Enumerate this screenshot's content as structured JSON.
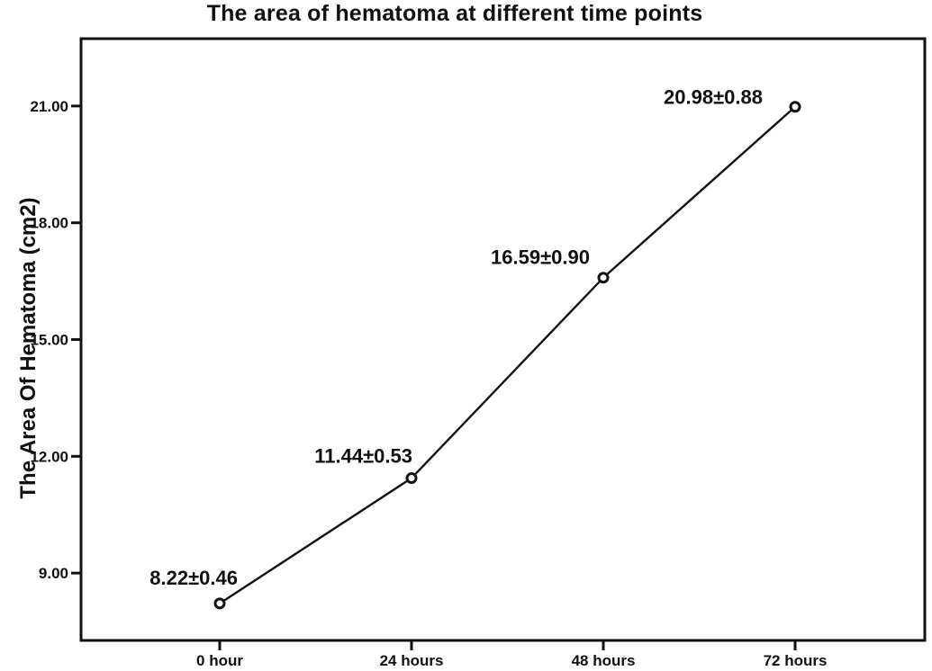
{
  "title": "The area of hematoma at different time points",
  "chart_data": {
    "type": "line",
    "title": "The area of hematoma at different time points",
    "xlabel": "",
    "ylabel": "The Area Of Hematoma (cm2)",
    "categories": [
      "0 hour",
      "24 hours",
      "48 hours",
      "72 hours"
    ],
    "values": [
      8.22,
      11.44,
      16.59,
      20.98
    ],
    "point_labels": [
      "8.22±0.46",
      "11.44±0.53",
      "16.59±0.90",
      "20.98±0.88"
    ],
    "yticks": [
      9,
      12,
      15,
      18,
      21
    ],
    "ytick_labels": [
      "9.00",
      "12.00",
      "15.00",
      "18.00",
      "21.00"
    ],
    "ylim": [
      7.27,
      22.73
    ],
    "grid": false,
    "legend": null,
    "line_color": "#111111",
    "marker": "open-circle",
    "marker_fill": "#ffffff",
    "frame_color": "#111111",
    "background_color": "#ffffff"
  }
}
